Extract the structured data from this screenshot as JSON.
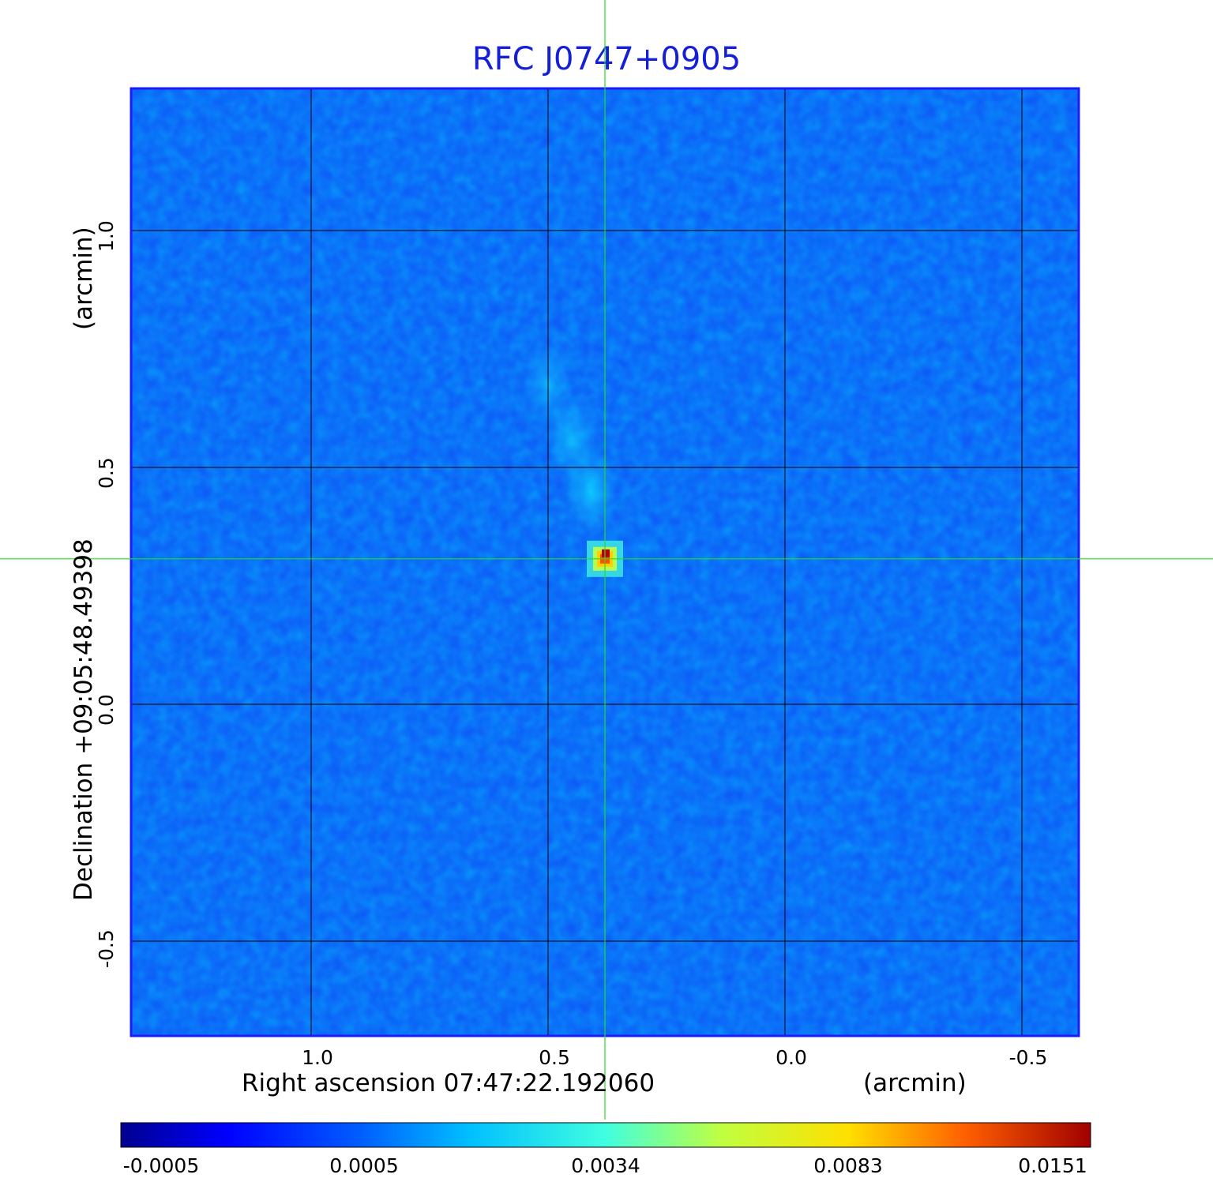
{
  "chart_data": {
    "type": "heatmap",
    "title": "RFC J0747+0905",
    "xlabel": "Right ascension  07:47:22.192060",
    "xunit": "(arcmin)",
    "ylabel": "Declination  +09:05:48.49398",
    "yunit": "(arcmin)",
    "xlim": [
      1.38,
      -0.62
    ],
    "ylim": [
      -0.7,
      1.3
    ],
    "xticks": [
      "1.0",
      "0.5",
      "0.0",
      "-0.5"
    ],
    "xtick_values": [
      1.0,
      0.5,
      0.0,
      -0.5
    ],
    "yticks": [
      "1.0",
      "0.5",
      "0.0",
      "-0.5"
    ],
    "ytick_values": [
      1.0,
      0.5,
      0.0,
      -0.5
    ],
    "grid": true,
    "colormap": "jet",
    "colorbar": {
      "ticks": [
        "-0.0005",
        "0.0005",
        "0.0034",
        "0.0083",
        "0.0151"
      ],
      "tick_values": [
        -0.0005,
        0.0005,
        0.0034,
        0.0083,
        0.0151
      ],
      "min": -0.0005,
      "max": 0.0151
    },
    "crosshair": {
      "x": 0.38,
      "y": 0.307
    },
    "source": {
      "peak": {
        "x": 0.38,
        "y": 0.307,
        "value": 0.0151
      },
      "jet": [
        {
          "x": 0.41,
          "y": 0.45,
          "value": 0.0009
        },
        {
          "x": 0.45,
          "y": 0.56,
          "value": 0.0006
        },
        {
          "x": 0.5,
          "y": 0.68,
          "value": 0.0003
        }
      ]
    }
  },
  "colors": {
    "title": "#1520d6",
    "crosshair": "#22dd22",
    "grid": "#000000",
    "frame": "#1a1aff"
  }
}
